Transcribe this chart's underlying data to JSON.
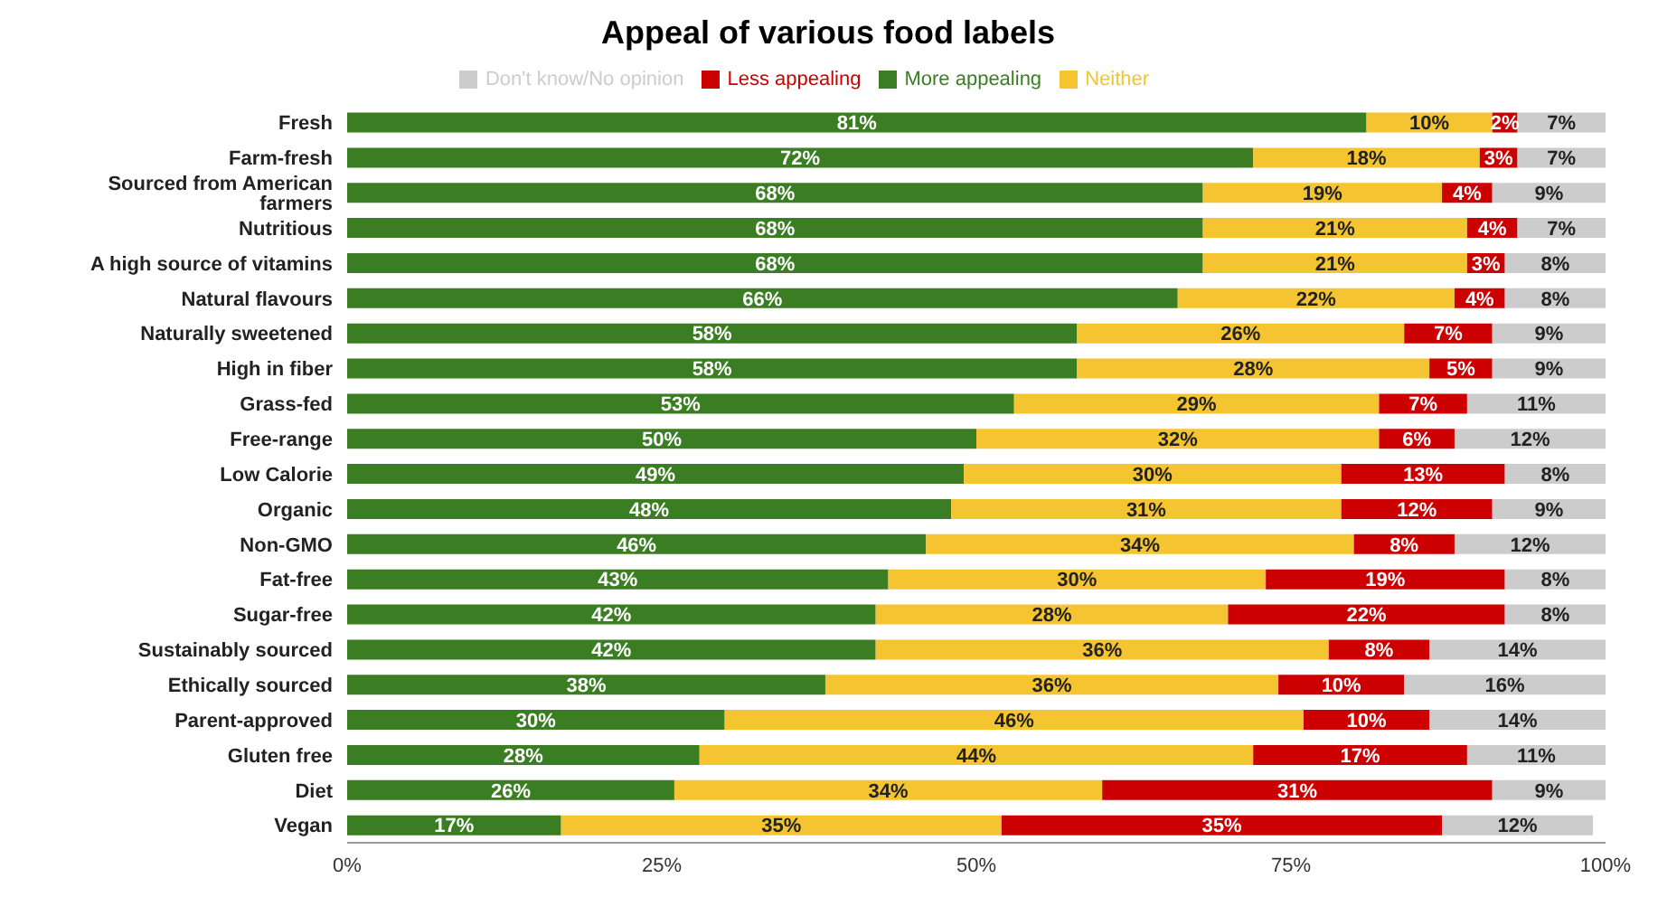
{
  "chart_data": {
    "type": "bar",
    "orientation": "horizontal",
    "stacked": true,
    "title": "Appeal of various food labels",
    "categories": [
      "Fresh",
      "Farm-fresh",
      "Sourced from American farmers",
      "Nutritious",
      "A high source of vitamins",
      "Natural flavours",
      "Naturally sweetened",
      "High in fiber",
      "Grass-fed",
      "Free-range",
      "Low Calorie",
      "Organic",
      "Non-GMO",
      "Fat-free",
      "Sugar-free",
      "Sustainably sourced",
      "Ethically sourced",
      "Parent-approved",
      "Gluten free",
      "Diet",
      "Vegan"
    ],
    "series": [
      {
        "name": "More appealing",
        "color": "#3a7d22",
        "values": [
          81,
          72,
          68,
          68,
          68,
          66,
          58,
          58,
          53,
          50,
          49,
          48,
          46,
          43,
          42,
          42,
          38,
          30,
          28,
          26,
          17
        ],
        "value_labels": [
          "81%",
          "72%",
          "68%",
          "68%",
          "68%",
          "66%",
          "58%",
          "58%",
          "53%",
          "50%",
          "49%",
          "48%",
          "46%",
          "43%",
          "42%",
          "42%",
          "38%",
          "30%",
          "28%",
          "26%",
          "17%"
        ]
      },
      {
        "name": "Neither",
        "color": "#f4c431",
        "values": [
          10,
          18,
          19,
          21,
          21,
          22,
          26,
          28,
          29,
          32,
          30,
          31,
          34,
          30,
          28,
          36,
          36,
          46,
          44,
          34,
          35
        ],
        "value_labels": [
          "10%",
          "18%",
          "19%",
          "21%",
          "21%",
          "22%",
          "26%",
          "28%",
          "29%",
          "32%",
          "30%",
          "31%",
          "34%",
          "30%",
          "28%",
          "36%",
          "36%",
          "46%",
          "44%",
          "34%",
          "35%"
        ]
      },
      {
        "name": "Less appealing",
        "color": "#cc0000",
        "values": [
          2,
          3,
          4,
          4,
          3,
          4,
          7,
          5,
          7,
          6,
          13,
          12,
          8,
          19,
          22,
          8,
          10,
          10,
          17,
          31,
          35
        ],
        "value_labels": [
          "2%",
          "3%",
          "4%",
          "4%",
          "3%",
          "4%",
          "7%",
          "5%",
          "7%",
          "6%",
          "13%",
          "12%",
          "8%",
          "19%",
          "22%",
          "8%",
          "10%",
          "10%",
          "17%",
          "31%",
          "35%"
        ]
      },
      {
        "name": "Don't know/No opinion",
        "color": "#cccccc",
        "values": [
          7,
          7,
          9,
          7,
          8,
          8,
          9,
          9,
          11,
          12,
          8,
          9,
          12,
          8,
          8,
          14,
          16,
          14,
          11,
          9,
          12
        ],
        "value_labels": [
          "7%",
          "7%",
          "9%",
          "7%",
          "8%",
          "8%",
          "9%",
          "9%",
          "11%",
          "12%",
          "8%",
          "9%",
          "12%",
          "8%",
          "8%",
          "14%",
          "16%",
          "14%",
          "11%",
          "9%",
          "12%"
        ]
      }
    ],
    "xlim": [
      0,
      100
    ],
    "xticks": [
      {
        "value": 0,
        "label": "0%"
      },
      {
        "value": 25,
        "label": "25%"
      },
      {
        "value": 50,
        "label": "50%"
      },
      {
        "value": 75,
        "label": "75%"
      },
      {
        "value": 100,
        "label": "100%"
      }
    ],
    "legend": "top"
  }
}
